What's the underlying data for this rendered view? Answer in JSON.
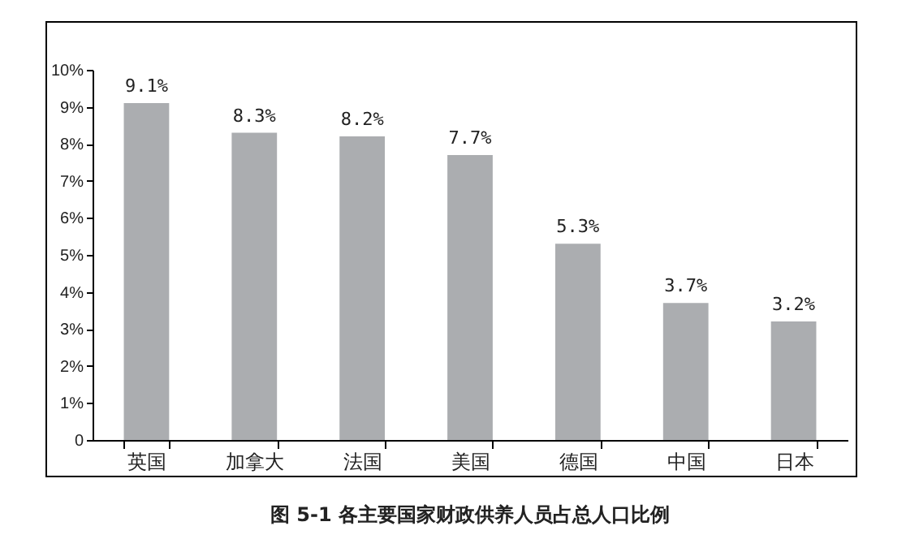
{
  "chart_data": {
    "type": "bar",
    "title": "图 5-1   各主要国家财政供养人员占总人口比例",
    "categories": [
      "英国",
      "加拿大",
      "法国",
      "美国",
      "德国",
      "中国",
      "日本"
    ],
    "values": [
      9.1,
      8.3,
      8.2,
      7.7,
      5.3,
      3.7,
      3.2
    ],
    "value_labels": [
      "9.1%",
      "8.3%",
      "8.2%",
      "7.7%",
      "5.3%",
      "3.7%",
      "3.2%"
    ],
    "color": "#abadb0",
    "ylim": [
      0,
      10
    ],
    "yticks": [
      0,
      {
        "value": 1,
        "label": "1%"
      },
      {
        "value": 2,
        "label": "2%"
      },
      {
        "value": 3,
        "label": "3%"
      },
      {
        "value": 4,
        "label": "4%"
      },
      {
        "value": 5,
        "label": "5%"
      },
      {
        "value": 6,
        "label": "6%"
      },
      {
        "value": 7,
        "label": "7%"
      },
      {
        "value": 8,
        "label": "8%"
      },
      {
        "value": 9,
        "label": "9%"
      },
      {
        "value": 10,
        "label": "10%"
      }
    ],
    "grid": false
  }
}
